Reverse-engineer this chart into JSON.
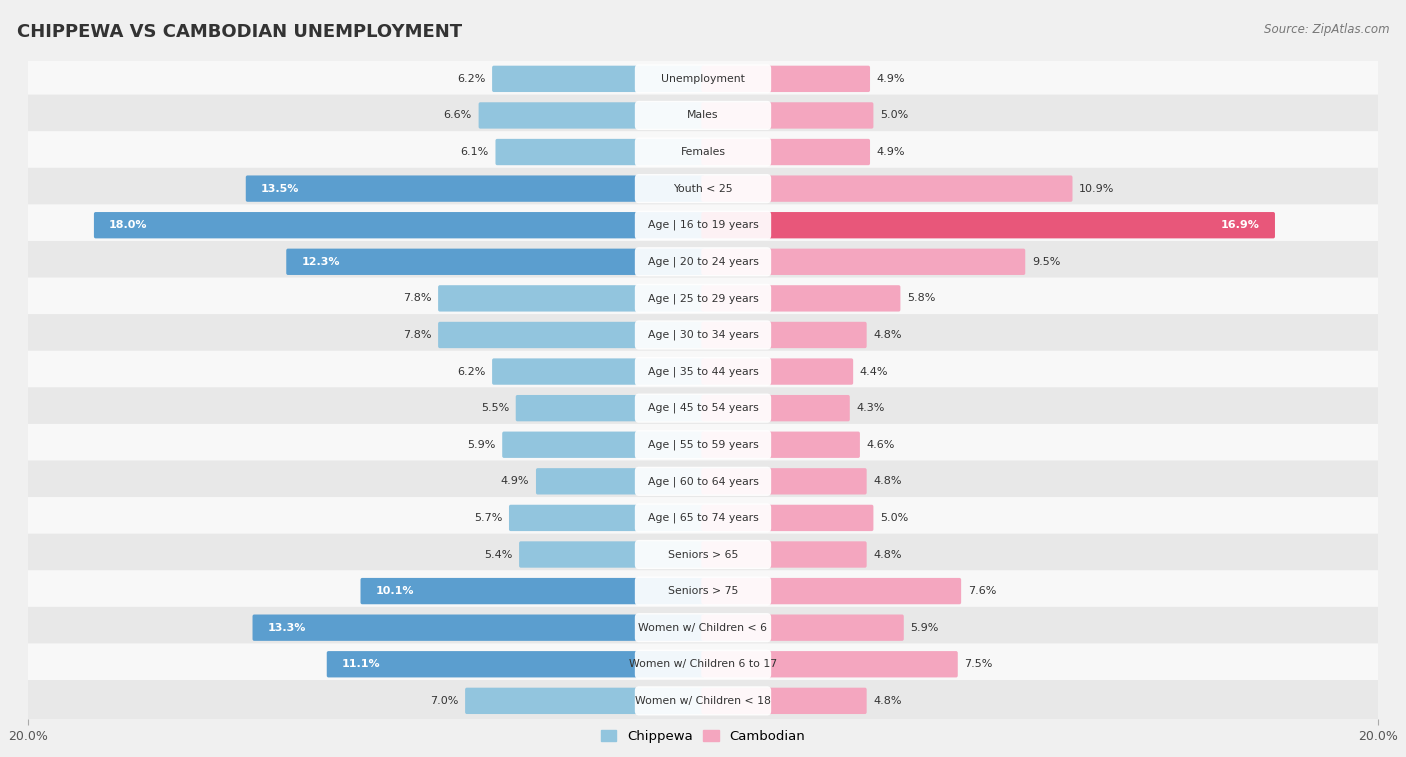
{
  "title": "CHIPPEWA VS CAMBODIAN UNEMPLOYMENT",
  "source": "Source: ZipAtlas.com",
  "categories": [
    "Unemployment",
    "Males",
    "Females",
    "Youth < 25",
    "Age | 16 to 19 years",
    "Age | 20 to 24 years",
    "Age | 25 to 29 years",
    "Age | 30 to 34 years",
    "Age | 35 to 44 years",
    "Age | 45 to 54 years",
    "Age | 55 to 59 years",
    "Age | 60 to 64 years",
    "Age | 65 to 74 years",
    "Seniors > 65",
    "Seniors > 75",
    "Women w/ Children < 6",
    "Women w/ Children 6 to 17",
    "Women w/ Children < 18"
  ],
  "chippewa": [
    6.2,
    6.6,
    6.1,
    13.5,
    18.0,
    12.3,
    7.8,
    7.8,
    6.2,
    5.5,
    5.9,
    4.9,
    5.7,
    5.4,
    10.1,
    13.3,
    11.1,
    7.0
  ],
  "cambodian": [
    4.9,
    5.0,
    4.9,
    10.9,
    16.9,
    9.5,
    5.8,
    4.8,
    4.4,
    4.3,
    4.6,
    4.8,
    5.0,
    4.8,
    7.6,
    5.9,
    7.5,
    4.8
  ],
  "chippewa_color": "#92c5de",
  "cambodian_color": "#f4a6bf",
  "chippewa_color_highlight": "#5b9ecf",
  "cambodian_color_highlight": "#e8577a",
  "bg_color": "#f0f0f0",
  "row_bg_light": "#f8f8f8",
  "row_bg_dark": "#e8e8e8",
  "xlim": 20.0,
  "legend_chippewa": "Chippewa",
  "legend_cambodian": "Cambodian",
  "chip_text_threshold": 10.0,
  "camb_text_threshold": 14.0
}
